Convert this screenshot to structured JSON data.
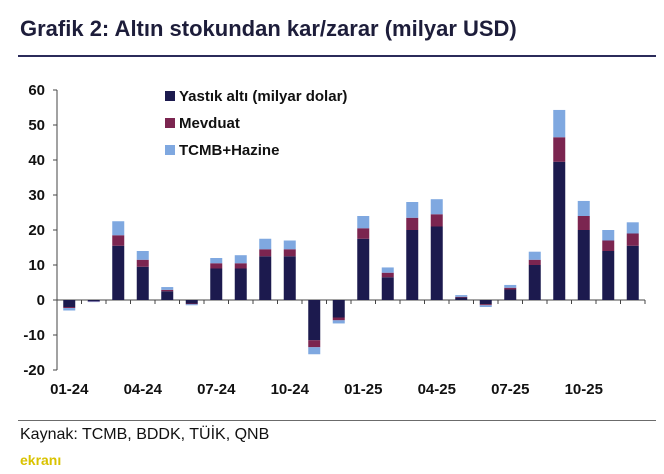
{
  "title": "Grafik 2: Altın stokundan kar/zarar (milyar USD)",
  "source": "Kaynak: TCMB, BDDK, TÜİK, QNB",
  "watermark": "ekranı",
  "colors": {
    "yastik": "#1c1a4e",
    "mevduat": "#7b2550",
    "tcmb": "#7fa8e0"
  },
  "chart_data": {
    "type": "bar",
    "stacked": true,
    "ylim": [
      -20,
      60
    ],
    "yticks": [
      60,
      50,
      40,
      30,
      20,
      10,
      0,
      -10,
      -20
    ],
    "xtick_labels": [
      "01-24",
      "04-24",
      "07-24",
      "10-24",
      "01-25",
      "04-25",
      "07-25",
      "10-25"
    ],
    "categories": [
      "01-24",
      "02-24",
      "03-24",
      "04-24",
      "05-24",
      "06-24",
      "07-24",
      "08-24",
      "09-24",
      "10-24",
      "11-24",
      "12-24",
      "01-25",
      "02-25",
      "03-25",
      "04-25",
      "05-25",
      "06-25",
      "07-25",
      "08-25",
      "09-25",
      "10-25",
      "11-25",
      "12-25"
    ],
    "legend_position": "top-left",
    "series": [
      {
        "name": "Yastık altı (milyar dolar)",
        "color_key": "yastik",
        "values": [
          -2,
          -0.3,
          15.5,
          9.5,
          2.5,
          -1,
          9,
          9,
          12.5,
          12.5,
          -11.5,
          -5,
          17.5,
          6.5,
          20,
          21,
          0.7,
          -1.2,
          3,
          10,
          39.5,
          20,
          14,
          15.5
        ]
      },
      {
        "name": "Mevduat",
        "color_key": "mevduat",
        "values": [
          -0.3,
          -0.1,
          3,
          2,
          0.4,
          -0.2,
          1.5,
          1.5,
          2,
          2,
          -2,
          -0.8,
          3,
          1.3,
          3.5,
          3.5,
          0.2,
          -0.3,
          0.5,
          1.5,
          7,
          4,
          3,
          3.5
        ]
      },
      {
        "name": "TCMB+Hazine",
        "color_key": "tcmb",
        "values": [
          -0.7,
          -0.2,
          4,
          2.5,
          0.8,
          -0.3,
          1.5,
          2.3,
          3,
          2.5,
          -2,
          -0.9,
          3.5,
          1.5,
          4.5,
          4.3,
          0.5,
          -0.5,
          0.8,
          2.3,
          7.8,
          4.3,
          3,
          3.2
        ]
      }
    ]
  }
}
